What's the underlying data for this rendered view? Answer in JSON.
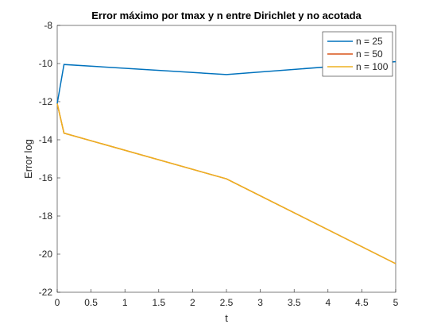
{
  "chart_data": {
    "type": "line",
    "title": "Error máximo por tmax y n entre Dirichlet y no acotada",
    "xlabel": "t",
    "ylabel": "Error log",
    "x": [
      0,
      0.1,
      2.5,
      5
    ],
    "series": [
      {
        "name": "n = 25",
        "color": "#0072BD",
        "values": [
          -12.1,
          -10.05,
          -10.58,
          -9.9
        ]
      },
      {
        "name": "n = 50",
        "color": "#D95319",
        "values": [
          -12.1,
          -13.65,
          -16.05,
          -20.5
        ]
      },
      {
        "name": "n = 100",
        "color": "#EDB120",
        "values": [
          -12.1,
          -13.65,
          -16.05,
          -20.5
        ]
      }
    ],
    "xlim": [
      0,
      5
    ],
    "xticks": [
      0,
      0.5,
      1,
      1.5,
      2,
      2.5,
      3,
      3.5,
      4,
      4.5,
      5
    ],
    "ylim": [
      -22,
      -8
    ],
    "yticks": [
      -22,
      -20,
      -18,
      -16,
      -14,
      -12,
      -10,
      -8
    ],
    "grid": false,
    "legend": "northeast"
  }
}
